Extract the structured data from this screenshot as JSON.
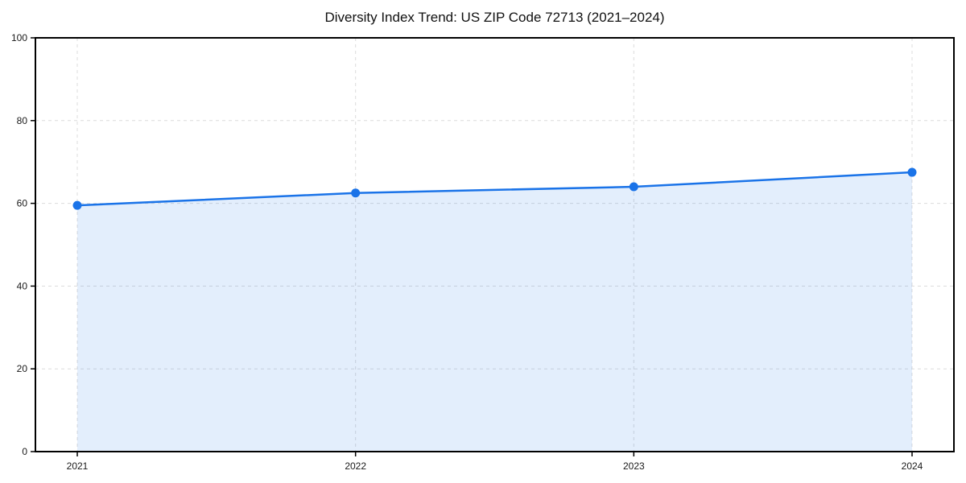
{
  "chart_data": {
    "type": "line",
    "area_fill": true,
    "title": "Diversity Index Trend: US ZIP Code 72713 (2021–2024)",
    "categories": [
      "2021",
      "2022",
      "2023",
      "2024"
    ],
    "series": [
      {
        "name": "Diversity Index",
        "values": [
          59.5,
          62.5,
          64.0,
          67.5
        ]
      }
    ],
    "xlabel": "",
    "ylabel": "",
    "ylim": [
      0,
      100
    ],
    "yticks": [
      0,
      20,
      40,
      60,
      80,
      100
    ],
    "grid": "dashed",
    "legend": "none",
    "colors": {
      "line": "#1a73e8",
      "marker": "#1a73e8",
      "area": "rgba(26,115,232,0.12)",
      "grid": "#dcdcdc",
      "axis": "#000000",
      "text": "#1a1a1a"
    }
  }
}
